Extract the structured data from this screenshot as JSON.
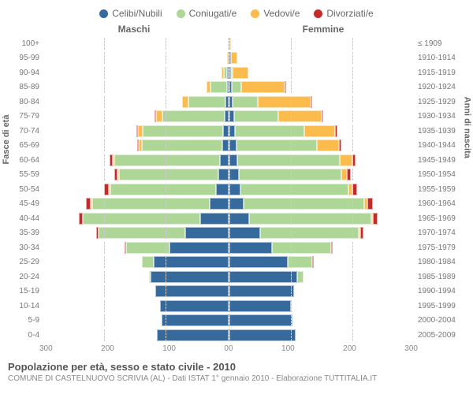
{
  "legend": [
    {
      "label": "Celibi/Nubili",
      "color": "#366a9c"
    },
    {
      "label": "Coniugati/e",
      "color": "#aed696"
    },
    {
      "label": "Vedovi/e",
      "color": "#fbbb4d"
    },
    {
      "label": "Divorziati/e",
      "color": "#c52a2b"
    }
  ],
  "headers": {
    "male": "Maschi",
    "female": "Femmine"
  },
  "y_left_title": "Fasce di età",
  "y_right_title": "Anni di nascita",
  "x_max": 300,
  "x_ticks_left": [
    "300",
    "200",
    "100",
    "0"
  ],
  "x_ticks_right": [
    "0",
    "100",
    "200",
    "300"
  ],
  "footer": {
    "title": "Popolazione per età, sesso e stato civile - 2010",
    "sub": "COMUNE DI CASTELNUOVO SCRIVIA (AL) - Dati ISTAT 1° gennaio 2010 - Elaborazione TUTTITALIA.IT"
  },
  "rows": [
    {
      "age": "100+",
      "year": "≤ 1909",
      "m": [
        0,
        0,
        0,
        0
      ],
      "f": [
        0,
        0,
        3,
        0
      ]
    },
    {
      "age": "95-99",
      "year": "1910-1914",
      "m": [
        0,
        0,
        2,
        0
      ],
      "f": [
        1,
        0,
        11,
        0
      ]
    },
    {
      "age": "90-94",
      "year": "1915-1919",
      "m": [
        1,
        4,
        4,
        0
      ],
      "f": [
        1,
        2,
        26,
        0
      ]
    },
    {
      "age": "85-89",
      "year": "1920-1924",
      "m": [
        2,
        26,
        7,
        0
      ],
      "f": [
        4,
        16,
        70,
        1
      ]
    },
    {
      "age": "80-84",
      "year": "1925-1929",
      "m": [
        4,
        60,
        10,
        0
      ],
      "f": [
        6,
        40,
        86,
        2
      ]
    },
    {
      "age": "75-79",
      "year": "1930-1934",
      "m": [
        6,
        100,
        10,
        1
      ],
      "f": [
        8,
        72,
        70,
        2
      ]
    },
    {
      "age": "70-74",
      "year": "1935-1939",
      "m": [
        8,
        130,
        8,
        2
      ],
      "f": [
        10,
        112,
        50,
        3
      ]
    },
    {
      "age": "65-69",
      "year": "1940-1944",
      "m": [
        10,
        130,
        4,
        3
      ],
      "f": [
        12,
        130,
        36,
        3
      ]
    },
    {
      "age": "60-64",
      "year": "1945-1949",
      "m": [
        14,
        170,
        3,
        5
      ],
      "f": [
        14,
        165,
        20,
        5
      ]
    },
    {
      "age": "55-59",
      "year": "1950-1954",
      "m": [
        16,
        160,
        2,
        6
      ],
      "f": [
        16,
        165,
        10,
        6
      ]
    },
    {
      "age": "50-54",
      "year": "1955-1959",
      "m": [
        20,
        170,
        1,
        8
      ],
      "f": [
        18,
        175,
        6,
        8
      ]
    },
    {
      "age": "45-49",
      "year": "1960-1964",
      "m": [
        30,
        190,
        1,
        8
      ],
      "f": [
        24,
        195,
        4,
        10
      ]
    },
    {
      "age": "40-44",
      "year": "1965-1969",
      "m": [
        45,
        190,
        0,
        7
      ],
      "f": [
        32,
        198,
        2,
        8
      ]
    },
    {
      "age": "35-39",
      "year": "1970-1974",
      "m": [
        70,
        140,
        0,
        4
      ],
      "f": [
        50,
        160,
        1,
        5
      ]
    },
    {
      "age": "30-34",
      "year": "1975-1979",
      "m": [
        95,
        70,
        0,
        2
      ],
      "f": [
        70,
        95,
        0,
        3
      ]
    },
    {
      "age": "25-29",
      "year": "1980-1984",
      "m": [
        120,
        20,
        0,
        0
      ],
      "f": [
        95,
        40,
        0,
        1
      ]
    },
    {
      "age": "20-24",
      "year": "1985-1989",
      "m": [
        125,
        3,
        0,
        0
      ],
      "f": [
        110,
        10,
        0,
        0
      ]
    },
    {
      "age": "15-19",
      "year": "1990-1994",
      "m": [
        118,
        0,
        0,
        0
      ],
      "f": [
        105,
        0,
        0,
        0
      ]
    },
    {
      "age": "10-14",
      "year": "1995-1999",
      "m": [
        110,
        0,
        0,
        0
      ],
      "f": [
        100,
        0,
        0,
        0
      ]
    },
    {
      "age": "5-9",
      "year": "2000-2004",
      "m": [
        108,
        0,
        0,
        0
      ],
      "f": [
        102,
        0,
        0,
        0
      ]
    },
    {
      "age": "0-4",
      "year": "2005-2009",
      "m": [
        115,
        0,
        0,
        0
      ],
      "f": [
        108,
        0,
        0,
        0
      ]
    }
  ]
}
